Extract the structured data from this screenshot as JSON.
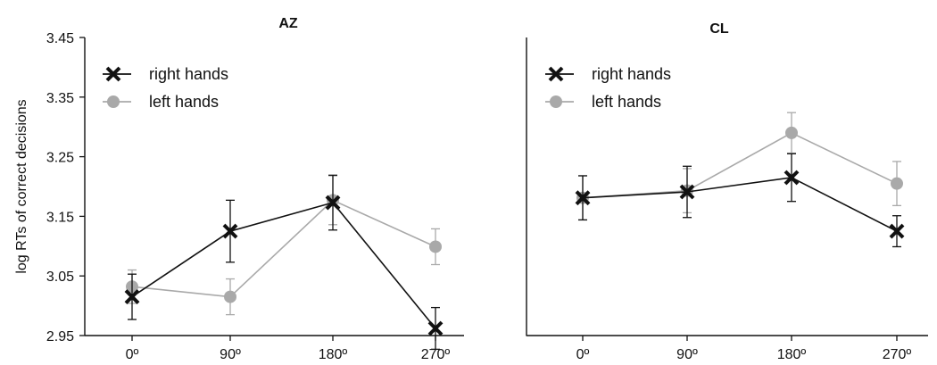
{
  "chart_data": [
    {
      "type": "line",
      "title": "AZ",
      "xlabel": "",
      "ylabel": "log RTs of correct decisions",
      "categories": [
        "0º",
        "90º",
        "180º",
        "270º"
      ],
      "ylim": [
        2.95,
        3.45
      ],
      "yticks": [
        "3.45",
        "3.35",
        "3.25",
        "3.15",
        "3.05",
        "2.95"
      ],
      "legend_position": "top-left",
      "grid": false,
      "series": [
        {
          "name": "right hands",
          "color": "#111111",
          "marker": "cross",
          "values": [
            3.015,
            3.125,
            3.173,
            2.962
          ],
          "errors": [
            0.038,
            0.052,
            0.046,
            0.035
          ]
        },
        {
          "name": "left hands",
          "color": "#a9a9a9",
          "marker": "circle",
          "values": [
            3.032,
            3.015,
            3.177,
            3.099
          ],
          "errors": [
            0.028,
            0.03,
            0.041,
            0.03
          ]
        }
      ]
    },
    {
      "type": "line",
      "title": "CL",
      "xlabel": "",
      "ylabel": "",
      "categories": [
        "0º",
        "90º",
        "180º",
        "270º"
      ],
      "ylim": [
        2.95,
        3.45
      ],
      "legend_position": "top-left",
      "grid": false,
      "series": [
        {
          "name": "right hands",
          "color": "#111111",
          "marker": "cross",
          "values": [
            3.181,
            3.191,
            3.215,
            3.125
          ],
          "errors": [
            0.037,
            0.043,
            0.04,
            0.026
          ]
        },
        {
          "name": "left hands",
          "color": "#a9a9a9",
          "marker": "circle",
          "values": [
            3.181,
            3.193,
            3.29,
            3.205
          ],
          "errors": [
            0.037,
            0.037,
            0.034,
            0.037
          ]
        }
      ]
    }
  ]
}
